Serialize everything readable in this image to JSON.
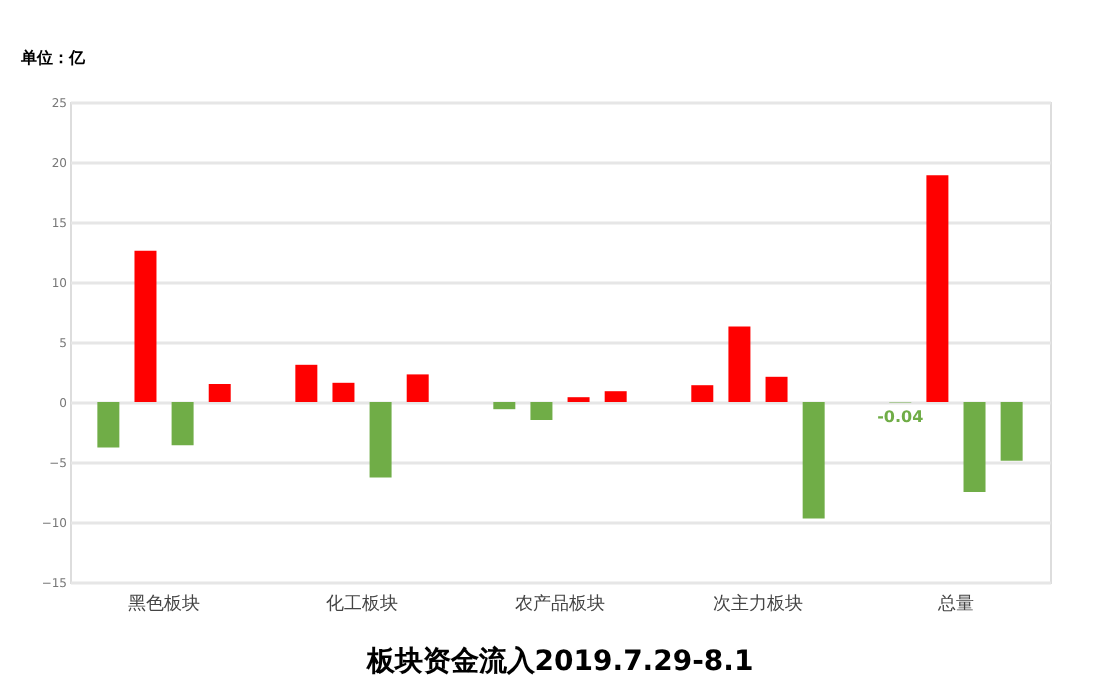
{
  "chart_data": {
    "type": "bar",
    "title": "板块资金流入2019.7.29-8.1",
    "ylabel": "单位：亿",
    "categories": [
      "黑色板块",
      "化工板块",
      "农产品板块",
      "次主力板块",
      "总量"
    ],
    "series": [
      {
        "colors": [
          "#70ad47",
          "#ff0000",
          "#70ad47",
          "#ff0000",
          "#70ad47"
        ],
        "values": [
          -3.8,
          3.1,
          -0.6,
          1.4,
          -0.04
        ],
        "value_labels": [
          null,
          null,
          null,
          null,
          "-0.04"
        ]
      },
      {
        "colors": [
          "#ff0000",
          "#ff0000",
          "#70ad47",
          "#ff0000",
          "#ff0000"
        ],
        "values": [
          12.6,
          1.6,
          -1.5,
          6.3,
          18.9
        ]
      },
      {
        "colors": [
          "#70ad47",
          "#70ad47",
          "#ff0000",
          "#ff0000",
          "#70ad47"
        ],
        "values": [
          -3.6,
          -6.3,
          0.4,
          2.1,
          -7.5
        ]
      },
      {
        "colors": [
          "#ff0000",
          "#ff0000",
          "#ff0000",
          "#70ad47",
          "#70ad47"
        ],
        "values": [
          1.5,
          2.3,
          0.9,
          -9.7,
          -4.9
        ]
      }
    ],
    "ylim": [
      -15,
      25
    ],
    "yticks": [
      -15,
      -10,
      -5,
      0,
      5,
      10,
      15,
      20,
      25
    ],
    "grid": "y"
  }
}
